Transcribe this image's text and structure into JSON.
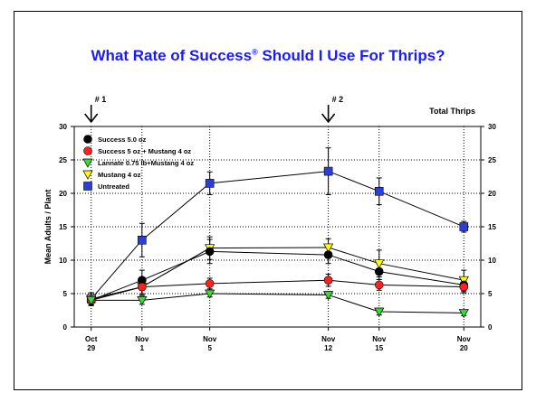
{
  "page": {
    "title_main": "What Rate of Success",
    "title_sup": "®",
    "title_rest": " Should I Use For  Thrips?"
  },
  "chart_data": {
    "type": "line",
    "title": "Total Thrips",
    "xlabel": "",
    "ylabel": "Mean Adults / Plant",
    "categories": [
      [
        "Oct",
        "29"
      ],
      [
        "Nov",
        "1"
      ],
      [
        "Nov",
        "5"
      ],
      [
        "Nov",
        "12"
      ],
      [
        "Nov",
        "15"
      ],
      [
        "Nov",
        "20"
      ]
    ],
    "x": [
      29,
      32,
      36,
      43,
      46,
      51
    ],
    "ylim": [
      0,
      30
    ],
    "yticks": [
      0,
      5,
      10,
      15,
      20,
      25,
      30
    ],
    "grid": true,
    "annotations": [
      {
        "label": "# 1",
        "x": 29
      },
      {
        "label": "# 2",
        "x": 43
      }
    ],
    "legend_position": "top-left",
    "series": [
      {
        "name": "Untreated",
        "marker": "square",
        "color": "#2b3fd6",
        "values": [
          4.2,
          13.0,
          21.5,
          23.3,
          20.3,
          15.0
        ],
        "errors": [
          0.9,
          2.5,
          1.7,
          3.5,
          2.0,
          0.8
        ]
      },
      {
        "name": "Mustang 4 oz",
        "marker": "triangle-down",
        "color": "#ffff00",
        "values": [
          4.2,
          6.0,
          11.8,
          11.9,
          9.5,
          7.0
        ],
        "errors": [
          0.9,
          1.2,
          1.7,
          1.3,
          2.0,
          1.5
        ]
      },
      {
        "name": "Success 5.0 oz",
        "marker": "circle",
        "color": "#000000",
        "values": [
          4.0,
          7.0,
          11.3,
          10.8,
          8.3,
          6.3
        ],
        "errors": [
          0.8,
          1.5,
          1.8,
          1.3,
          1.2,
          1.0
        ]
      },
      {
        "name": "Success 5 oz + Mustang 4 oz",
        "marker": "circle",
        "color": "#ff2020",
        "values": [
          4.0,
          6.0,
          6.5,
          7.0,
          6.3,
          6.0
        ],
        "errors": [
          0.7,
          1.0,
          0.8,
          0.9,
          0.8,
          0.9
        ]
      },
      {
        "name": "Lannate 0.75 lb+Mustang 4 oz",
        "marker": "triangle-down",
        "color": "#33dd33",
        "values": [
          4.0,
          4.0,
          5.0,
          4.8,
          2.3,
          2.1
        ],
        "errors": [
          0.5,
          0.6,
          0.5,
          0.5,
          0.5,
          0.4
        ]
      }
    ],
    "legend_order": [
      "Success 5.0 oz",
      "Success 5 oz + Mustang 4 oz",
      "Lannate 0.75 lb+Mustang 4 oz",
      "Mustang 4 oz",
      "Untreated"
    ]
  }
}
